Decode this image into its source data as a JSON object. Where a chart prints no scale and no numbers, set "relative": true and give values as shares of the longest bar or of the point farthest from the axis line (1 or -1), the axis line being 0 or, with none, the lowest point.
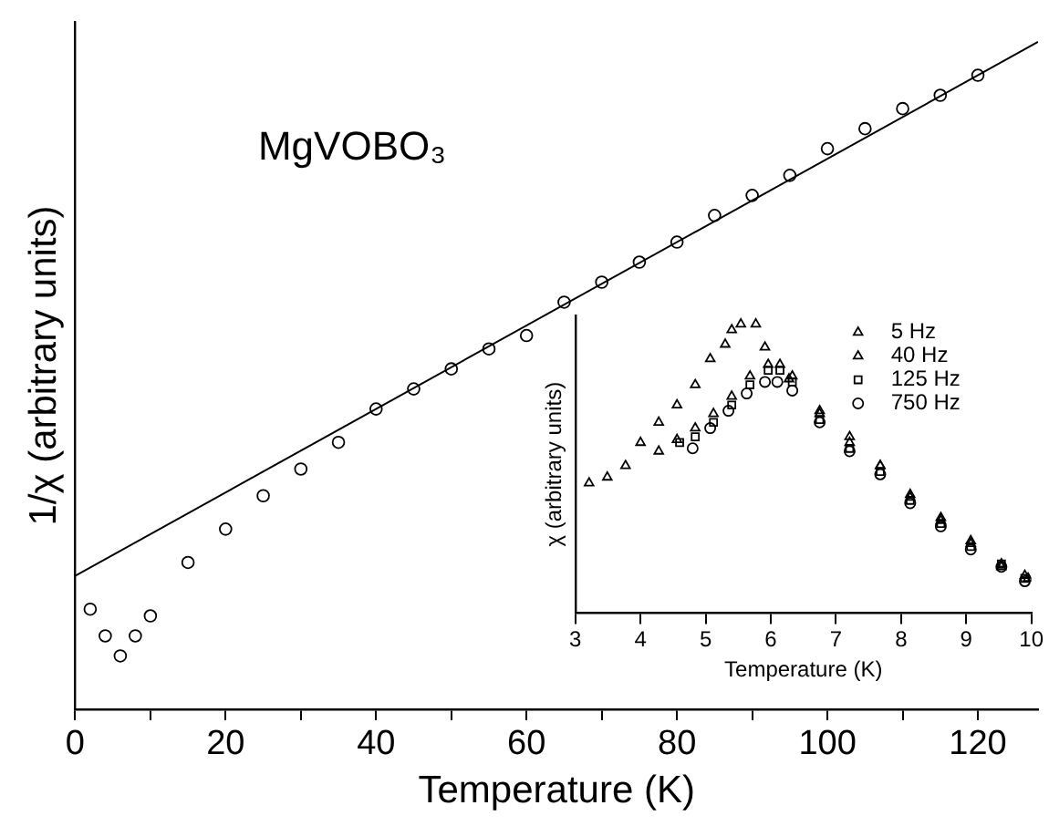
{
  "chart_data": [
    {
      "type": "scatter",
      "xlabel": "Temperature (K)",
      "ylabel": "1/χ (arbitrary units)",
      "relative": true,
      "annotations": [
        "MgVOBO₃"
      ],
      "xlim": [
        0,
        128
      ],
      "xticks": [
        0,
        {
          "value": 10,
          "label": null
        },
        20,
        {
          "value": 30,
          "label": null
        },
        40,
        {
          "value": 50,
          "label": null
        },
        60,
        {
          "value": 70,
          "label": null
        },
        80,
        {
          "value": 90,
          "label": null
        },
        100,
        {
          "value": 110,
          "label": null
        },
        120
      ],
      "legend": false,
      "grid": false,
      "series": [
        {
          "type": "scatter",
          "marker": "circle",
          "color": "#000000",
          "x": [
            2,
            4,
            6,
            8,
            10,
            15,
            20,
            25,
            30,
            35,
            40,
            45,
            50,
            55,
            60,
            65,
            70,
            75,
            80,
            85,
            90,
            95,
            100,
            105,
            110,
            115,
            120
          ],
          "values": [
            0.15,
            0.11,
            0.08,
            0.11,
            0.14,
            0.22,
            0.27,
            0.32,
            0.36,
            0.4,
            0.45,
            0.48,
            0.51,
            0.54,
            0.56,
            0.61,
            0.64,
            0.67,
            0.7,
            0.74,
            0.77,
            0.8,
            0.84,
            0.87,
            0.9,
            0.92,
            0.95
          ]
        },
        {
          "type": "line",
          "marker": "none",
          "color": "#000000",
          "x": [
            0,
            128
          ],
          "values": [
            0.2,
            1.0
          ]
        }
      ]
    },
    {
      "type": "scatter",
      "xlabel": "Temperature (K)",
      "ylabel": "χ (arbitrary units)",
      "relative": true,
      "xlim": [
        3,
        10
      ],
      "xticks": [
        3,
        4,
        5,
        6,
        7,
        8,
        9,
        10
      ],
      "legend": "top right",
      "grid": false,
      "series": [
        {
          "name": "5 Hz",
          "marker": "triangle",
          "color": "#000000",
          "x": [
            3.21,
            3.49,
            3.77,
            4.0,
            4.28,
            4.56,
            4.84,
            5.07,
            5.3,
            5.4,
            5.54,
            5.77,
            5.91,
            6.28,
            6.75,
            7.21,
            7.68,
            8.14,
            8.61,
            9.07,
            9.54,
            9.95
          ],
          "values": [
            0.45,
            0.47,
            0.51,
            0.59,
            0.66,
            0.72,
            0.79,
            0.88,
            0.93,
            0.98,
            1.0,
            1.0,
            0.92,
            0.81,
            0.69,
            0.61,
            0.51,
            0.41,
            0.33,
            0.25,
            0.17,
            0.12
          ]
        },
        {
          "name": "40 Hz",
          "marker": "triangle",
          "color": "#000000",
          "x": [
            4.28,
            4.56,
            4.84,
            5.12,
            5.4,
            5.68,
            5.96,
            6.14,
            6.33,
            6.75,
            7.21,
            7.68,
            8.14,
            8.61,
            9.07,
            9.54,
            9.9
          ],
          "values": [
            0.56,
            0.6,
            0.64,
            0.69,
            0.75,
            0.82,
            0.86,
            0.86,
            0.82,
            0.7,
            0.59,
            0.51,
            0.4,
            0.32,
            0.24,
            0.16,
            0.13
          ]
        },
        {
          "name": "125 Hz",
          "marker": "square",
          "color": "#000000",
          "x": [
            4.6,
            4.84,
            5.12,
            5.4,
            5.68,
            5.96,
            6.14,
            6.33,
            6.75,
            7.21,
            7.68,
            8.14,
            8.61,
            9.07,
            9.54,
            9.9
          ],
          "values": [
            0.59,
            0.61,
            0.66,
            0.72,
            0.79,
            0.84,
            0.84,
            0.8,
            0.67,
            0.57,
            0.49,
            0.39,
            0.31,
            0.23,
            0.17,
            0.12
          ]
        },
        {
          "name": "750 Hz",
          "marker": "circle",
          "color": "#000000",
          "x": [
            4.8,
            5.07,
            5.35,
            5.63,
            5.91,
            6.1,
            6.33,
            6.75,
            7.21,
            7.68,
            8.14,
            8.61,
            9.07,
            9.54,
            9.9
          ],
          "values": [
            0.57,
            0.64,
            0.7,
            0.76,
            0.8,
            0.8,
            0.77,
            0.66,
            0.56,
            0.48,
            0.38,
            0.3,
            0.22,
            0.16,
            0.11
          ]
        }
      ]
    }
  ]
}
